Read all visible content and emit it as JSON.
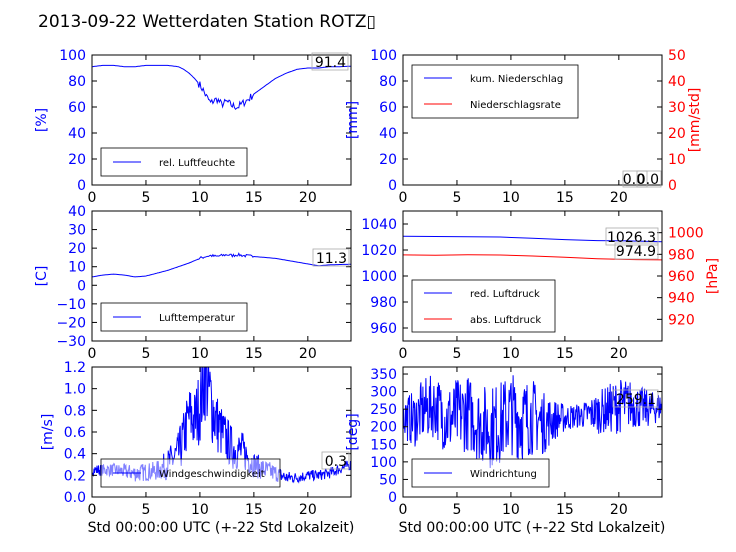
{
  "figure": {
    "title": "2013-09-22 Wetterdaten Station ROTZ▯"
  },
  "colors": {
    "primary": "#0000ff",
    "secondary": "#ff0000",
    "text": "#000000"
  },
  "chart_data": [
    {
      "id": "humidity",
      "type": "line",
      "xlim": [
        0,
        24
      ],
      "ylim": [
        0,
        100
      ],
      "xticks": [
        "0",
        "5",
        "10",
        "15",
        "20"
      ],
      "yticks": [
        "0",
        "20",
        "40",
        "60",
        "80",
        "100"
      ],
      "ylabel": "[%]",
      "annotation": "91.4",
      "series": [
        {
          "name": "rel. Luftfeuchte",
          "color": "#0000ff",
          "x": [
            0,
            1,
            2,
            3,
            4,
            5,
            6,
            7,
            8,
            8.5,
            9,
            9.5,
            10,
            10.3,
            10.6,
            11,
            11.3,
            11.6,
            12,
            12.5,
            13,
            13.5,
            14,
            14.5,
            15,
            16,
            17,
            18,
            19,
            20,
            21,
            22,
            23,
            24
          ],
          "y": [
            91,
            92,
            92,
            91,
            91,
            92,
            92,
            92,
            91,
            89,
            86,
            82,
            77,
            73,
            68,
            63,
            65,
            66,
            62,
            64,
            61,
            60,
            63,
            66,
            70,
            76,
            82,
            86,
            89,
            90,
            90,
            91,
            91,
            91.4
          ]
        }
      ]
    },
    {
      "id": "precipitation",
      "type": "line",
      "xlim": [
        0,
        24
      ],
      "ylim": [
        0,
        100
      ],
      "y2lim": [
        0,
        50
      ],
      "xticks": [
        "0",
        "5",
        "10",
        "15",
        "20"
      ],
      "yticks": [
        "0",
        "20",
        "40",
        "60",
        "80",
        "100"
      ],
      "y2ticks": [
        "0",
        "10",
        "20",
        "30",
        "40",
        "50"
      ],
      "ylabel": "[mm]",
      "y2label": "[mm/std]",
      "annotation": "0.0",
      "annotation2": "0.0",
      "series": [
        {
          "name": "kum. Niederschlag",
          "color": "#0000ff",
          "axis": "left",
          "x": [
            0,
            24
          ],
          "y": [
            0,
            0
          ]
        },
        {
          "name": "Niederschlagsrate",
          "color": "#ff0000",
          "axis": "right",
          "x": [
            0,
            24
          ],
          "y": [
            0,
            0
          ]
        }
      ]
    },
    {
      "id": "temperature",
      "type": "line",
      "xlim": [
        0,
        24
      ],
      "ylim": [
        -30,
        40
      ],
      "xticks": [
        "0",
        "5",
        "10",
        "15",
        "20"
      ],
      "yticks": [
        "−30",
        "−20",
        "−10",
        "0",
        "10",
        "20",
        "30",
        "40"
      ],
      "ylabel": "[C]",
      "annotation": "11.3",
      "series": [
        {
          "name": "Lufttemperatur",
          "color": "#0000ff",
          "x": [
            0,
            1,
            2,
            3,
            4,
            5,
            6,
            7,
            8,
            9,
            10,
            10.5,
            11,
            11.5,
            12,
            12.5,
            13,
            13.5,
            14,
            15,
            16,
            17,
            18,
            19,
            20,
            21,
            22,
            23,
            24
          ],
          "y": [
            4.5,
            5.5,
            6,
            5.5,
            4.5,
            5,
            6.5,
            8,
            10,
            12,
            14.5,
            15.5,
            16,
            15.5,
            16,
            16.5,
            16,
            16.5,
            16,
            15.5,
            15,
            14.5,
            13.5,
            12.5,
            11.5,
            10.5,
            11,
            11.2,
            11.3
          ]
        }
      ]
    },
    {
      "id": "pressure",
      "type": "line",
      "xlim": [
        0,
        24
      ],
      "ylim": [
        950,
        1050
      ],
      "y2lim": [
        900,
        1020
      ],
      "xticks": [
        "0",
        "5",
        "10",
        "15",
        "20"
      ],
      "yticks": [
        "960",
        "980",
        "1000",
        "1020",
        "1040"
      ],
      "y2ticks": [
        "920",
        "940",
        "960",
        "980",
        "1000"
      ],
      "y2label": "[hPa]",
      "annotation": "1026.3",
      "annotation2": "974.9",
      "series": [
        {
          "name": "red. Luftdruck",
          "color": "#0000ff",
          "axis": "left",
          "x": [
            0,
            3,
            6,
            9,
            12,
            15,
            18,
            21,
            24
          ],
          "y": [
            1030.5,
            1030.4,
            1030.2,
            1030,
            1029,
            1028,
            1027.2,
            1027,
            1026.3
          ]
        },
        {
          "name": "abs. Luftdruck",
          "color": "#ff0000",
          "axis": "right",
          "x": [
            0,
            3,
            6,
            9,
            12,
            15,
            18,
            21,
            24
          ],
          "y": [
            979.5,
            979.2,
            979.6,
            979.4,
            978.5,
            977.3,
            976,
            975.2,
            974.9
          ]
        }
      ]
    },
    {
      "id": "windspeed",
      "type": "line",
      "xlim": [
        0,
        24
      ],
      "ylim": [
        0,
        1.2
      ],
      "xticks": [
        "0",
        "5",
        "10",
        "15",
        "20"
      ],
      "yticks": [
        "0.0",
        "0.2",
        "0.4",
        "0.6",
        "0.8",
        "1.0",
        "1.2"
      ],
      "ylabel": "[m/s]",
      "xlabel": "Std 00:00:00 UTC (+-22 Std Lokalzeit)",
      "annotation": "0.3",
      "series": [
        {
          "name": "Windgeschwindigkeit",
          "color": "#0000ff",
          "x": [
            0,
            2,
            4,
            6,
            7,
            8,
            8.5,
            9,
            9.5,
            10,
            10.5,
            11,
            11.5,
            12,
            13,
            14,
            15,
            16,
            17,
            18,
            19,
            20,
            21,
            22,
            24
          ],
          "y": [
            0.25,
            0.25,
            0.22,
            0.24,
            0.3,
            0.4,
            0.55,
            0.75,
            0.7,
            0.85,
            1.15,
            0.9,
            0.7,
            0.6,
            0.45,
            0.42,
            0.3,
            0.25,
            0.22,
            0.18,
            0.18,
            0.2,
            0.2,
            0.22,
            0.3
          ],
          "noise": [
            0.05,
            0.06,
            0.08,
            0.09,
            0.14,
            0.2,
            0.25,
            0.3,
            0.3,
            0.35,
            0.45,
            0.4,
            0.3,
            0.25,
            0.2,
            0.18,
            0.12,
            0.1,
            0.08,
            0.06,
            0.05,
            0.05,
            0.05,
            0.05,
            0.05
          ]
        }
      ]
    },
    {
      "id": "winddirection",
      "type": "line",
      "xlim": [
        0,
        24
      ],
      "ylim": [
        0,
        370
      ],
      "xticks": [
        "0",
        "5",
        "10",
        "15",
        "20"
      ],
      "yticks": [
        "0",
        "50",
        "100",
        "150",
        "200",
        "250",
        "300",
        "350"
      ],
      "ylabel": "[deg]",
      "xlabel": "Std 00:00:00 UTC (+-22 Std Lokalzeit)",
      "annotation": "259.1",
      "series": [
        {
          "name": "Windrichtung",
          "color": "#0000ff",
          "x": [
            0,
            1,
            2,
            3,
            4,
            5,
            6,
            7,
            8,
            9,
            10,
            11,
            12,
            13,
            14,
            15,
            16,
            17,
            18,
            19,
            20,
            21,
            22,
            23,
            24
          ],
          "y": [
            230,
            220,
            250,
            260,
            220,
            230,
            240,
            210,
            200,
            210,
            240,
            220,
            230,
            210,
            220,
            225,
            230,
            235,
            240,
            250,
            260,
            265,
            255,
            250,
            259
          ],
          "noise": [
            60,
            80,
            90,
            90,
            100,
            110,
            110,
            110,
            120,
            120,
            120,
            120,
            110,
            90,
            60,
            40,
            35,
            40,
            60,
            70,
            80,
            70,
            60,
            50,
            40
          ]
        }
      ]
    }
  ]
}
